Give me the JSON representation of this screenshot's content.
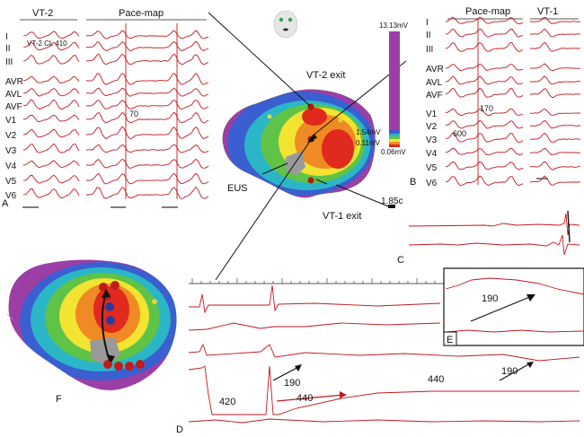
{
  "panels": {
    "A": {
      "letter": "A",
      "headers": [
        "VT-2",
        "Pace-map"
      ],
      "subtitle": "VT-2 CL 410",
      "leads": [
        "I",
        "II",
        "III",
        "AVR",
        "AVL",
        "AVF",
        "V1",
        "V2",
        "V3",
        "V4",
        "V5",
        "V6"
      ],
      "annotation": "70"
    },
    "B": {
      "letter": "B",
      "headers": [
        "Pace-map",
        "VT-1"
      ],
      "leads": [
        "I",
        "II",
        "III",
        "AVR",
        "AVL",
        "AVF",
        "V1",
        "V2",
        "V3",
        "V4",
        "V5",
        "V6"
      ],
      "annotations": [
        "170",
        "600"
      ]
    },
    "map": {
      "labels": {
        "vt2_exit": "VT-2 exit",
        "vt1_exit": "VT-1 exit",
        "eus": "EUS",
        "time": "1.85c"
      },
      "scale": {
        "max": "13.13mV",
        "mid": "1.54mV",
        "low": "0.11mV",
        "min": "0.06mV",
        "colors": [
          "#9b3fa6",
          "#3a5fd0",
          "#2bb6c8",
          "#5fc347",
          "#f3e431",
          "#f08a24",
          "#e02a1e"
        ]
      }
    },
    "C": {
      "letter": "C"
    },
    "D": {
      "letter": "D",
      "annotations": [
        "420",
        "440",
        "190",
        "440",
        "190"
      ]
    },
    "E": {
      "letter": "E",
      "annotation": "190"
    },
    "F": {
      "letter": "F"
    }
  },
  "colors": {
    "trace": "#c2181f",
    "scar": "#9b3fa6",
    "eus": "#9a9a9a"
  }
}
